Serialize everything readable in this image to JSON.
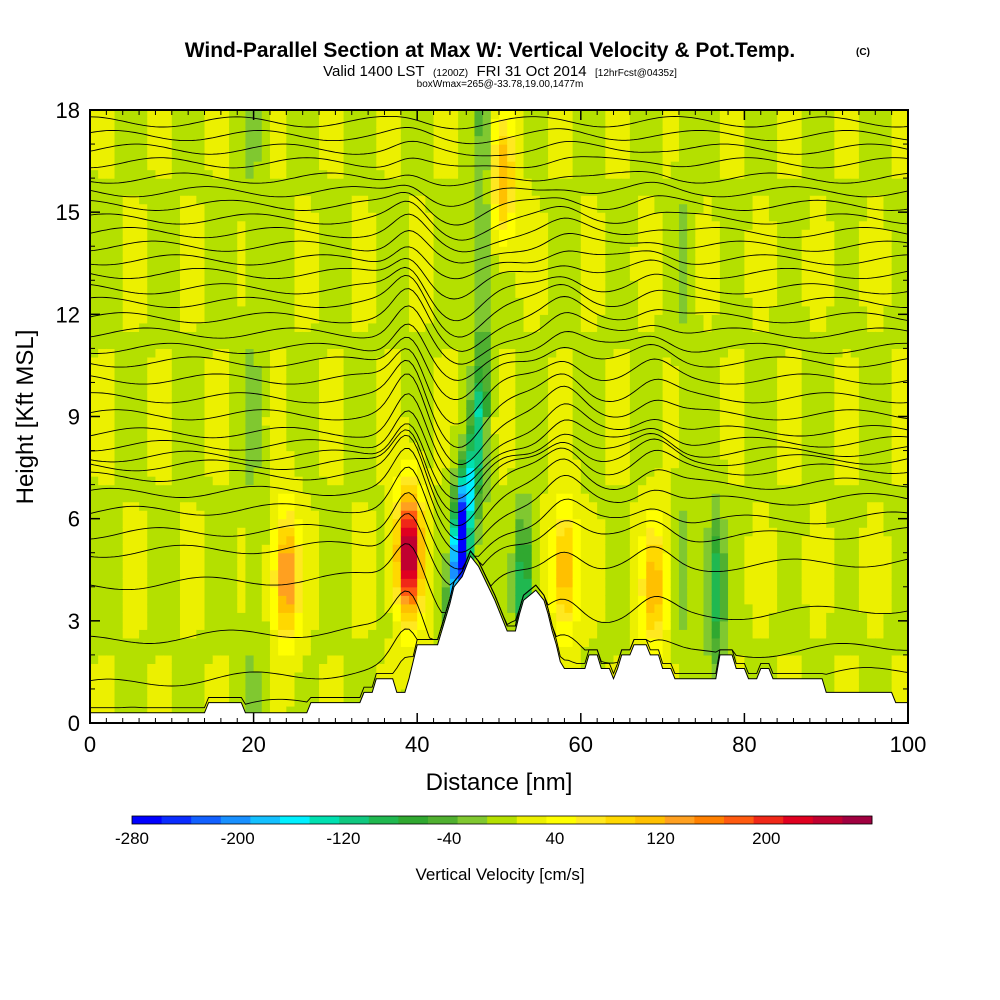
{
  "title": "Wind-Parallel Section at Max W: Vertical Velocity & Pot.Temp.",
  "copyright": "(C)",
  "subtitle": {
    "prefix": "Valid 1400 LST",
    "utc": "(1200Z)",
    "date": "FRI 31 Oct 2014",
    "forecast": "[12hrFcst@0435z]"
  },
  "boxinfo": "boxWmax=265@-33.78,19.00,1477m",
  "chart_data": {
    "type": "heatmap",
    "title": "Wind-Parallel Section at Max W: Vertical Velocity & Pot.Temp.",
    "xlabel": "Distance [nm]",
    "ylabel": "Height [Kft MSL]",
    "xlim": [
      0,
      100
    ],
    "ylim": [
      0,
      18
    ],
    "xticks": [
      "0",
      "20",
      "40",
      "60",
      "80",
      "100"
    ],
    "yticks": [
      "0",
      "3",
      "6",
      "9",
      "12",
      "15",
      "18"
    ],
    "colorbar": {
      "label": "Vertical Velocity [cm/s]",
      "range": [
        -280,
        280
      ],
      "tick_labels": [
        "-280",
        "-200",
        "-120",
        "-40",
        "40",
        "120",
        "200"
      ],
      "colors": [
        "#0000ff",
        "#0a2cff",
        "#1260ff",
        "#1890ff",
        "#14c0ff",
        "#00f0ff",
        "#00e0b0",
        "#10c880",
        "#20b850",
        "#30a830",
        "#50b030",
        "#80c830",
        "#b4e000",
        "#ecf000",
        "#ffff00",
        "#ffe820",
        "#ffd800",
        "#ffc000",
        "#ffa020",
        "#ff8000",
        "#ff5a10",
        "#f02818",
        "#e00020",
        "#c00030",
        "#a00040"
      ]
    },
    "velocity_features": [
      {
        "type": "updraft",
        "x_nm": 24,
        "z_kft": 4.3,
        "w_cms": 150
      },
      {
        "type": "updraft",
        "x_nm": 39,
        "z_kft": 5.0,
        "w_cms": 265
      },
      {
        "type": "downdraft",
        "x_nm": 45.5,
        "z_kft": 5.0,
        "w_cms": -220
      },
      {
        "type": "downdraft",
        "x_nm": 47.5,
        "z_kft": 8.0,
        "w_cms": -80
      },
      {
        "type": "updraft",
        "x_nm": 50.5,
        "z_kft": 16.0,
        "w_cms": 110
      },
      {
        "type": "downdraft",
        "x_nm": 53,
        "z_kft": 4.0,
        "w_cms": -120
      },
      {
        "type": "updraft",
        "x_nm": 58,
        "z_kft": 4.5,
        "w_cms": 120
      },
      {
        "type": "updraft",
        "x_nm": 69,
        "z_kft": 4.0,
        "w_cms": 110
      },
      {
        "type": "downdraft",
        "x_nm": 76.5,
        "z_kft": 4.0,
        "w_cms": -110
      }
    ],
    "terrain_kft": [
      {
        "x": 0,
        "z": 0.3
      },
      {
        "x": 14,
        "z": 0.3
      },
      {
        "x": 14.5,
        "z": 0.6
      },
      {
        "x": 18.5,
        "z": 0.6
      },
      {
        "x": 19,
        "z": 0.3
      },
      {
        "x": 26.5,
        "z": 0.3
      },
      {
        "x": 27,
        "z": 0.6
      },
      {
        "x": 33,
        "z": 0.6
      },
      {
        "x": 33.5,
        "z": 0.9
      },
      {
        "x": 34.5,
        "z": 0.9
      },
      {
        "x": 35,
        "z": 1.3
      },
      {
        "x": 37,
        "z": 1.3
      },
      {
        "x": 37.5,
        "z": 0.9
      },
      {
        "x": 38.5,
        "z": 0.9
      },
      {
        "x": 39,
        "z": 1.3
      },
      {
        "x": 39.5,
        "z": 1.8
      },
      {
        "x": 40,
        "z": 2.3
      },
      {
        "x": 42.5,
        "z": 2.3
      },
      {
        "x": 43,
        "z": 2.7
      },
      {
        "x": 43.5,
        "z": 3.1
      },
      {
        "x": 44,
        "z": 3.5
      },
      {
        "x": 44.5,
        "z": 4.0
      },
      {
        "x": 45.5,
        "z": 4.3
      },
      {
        "x": 46.5,
        "z": 4.9
      },
      {
        "x": 47.5,
        "z": 4.6
      },
      {
        "x": 48.5,
        "z": 4.1
      },
      {
        "x": 49.5,
        "z": 3.6
      },
      {
        "x": 50.5,
        "z": 3.0
      },
      {
        "x": 51,
        "z": 2.7
      },
      {
        "x": 52,
        "z": 2.7
      },
      {
        "x": 52.5,
        "z": 3.2
      },
      {
        "x": 53,
        "z": 3.6
      },
      {
        "x": 54.5,
        "z": 3.9
      },
      {
        "x": 55.5,
        "z": 3.6
      },
      {
        "x": 56,
        "z": 3.2
      },
      {
        "x": 56.5,
        "z": 2.7
      },
      {
        "x": 57,
        "z": 2.3
      },
      {
        "x": 57.5,
        "z": 1.8
      },
      {
        "x": 58,
        "z": 1.6
      },
      {
        "x": 60.5,
        "z": 1.6
      },
      {
        "x": 61,
        "z": 2.0
      },
      {
        "x": 62,
        "z": 2.0
      },
      {
        "x": 62.5,
        "z": 1.6
      },
      {
        "x": 63.5,
        "z": 1.6
      },
      {
        "x": 64,
        "z": 1.3
      },
      {
        "x": 64.5,
        "z": 1.6
      },
      {
        "x": 65,
        "z": 2.0
      },
      {
        "x": 66,
        "z": 2.0
      },
      {
        "x": 66.5,
        "z": 2.3
      },
      {
        "x": 68,
        "z": 2.3
      },
      {
        "x": 68.5,
        "z": 2.0
      },
      {
        "x": 69.5,
        "z": 2.0
      },
      {
        "x": 70,
        "z": 1.6
      },
      {
        "x": 71,
        "z": 1.6
      },
      {
        "x": 71.5,
        "z": 1.3
      },
      {
        "x": 76.5,
        "z": 1.3
      },
      {
        "x": 77,
        "z": 2.0
      },
      {
        "x": 78.5,
        "z": 2.0
      },
      {
        "x": 79,
        "z": 1.6
      },
      {
        "x": 80,
        "z": 1.6
      },
      {
        "x": 80.5,
        "z": 1.3
      },
      {
        "x": 81.5,
        "z": 1.3
      },
      {
        "x": 82,
        "z": 1.6
      },
      {
        "x": 83,
        "z": 1.6
      },
      {
        "x": 83.5,
        "z": 1.3
      },
      {
        "x": 89.5,
        "z": 1.3
      },
      {
        "x": 90,
        "z": 0.9
      },
      {
        "x": 98,
        "z": 0.9
      },
      {
        "x": 98.5,
        "z": 0.6
      },
      {
        "x": 100,
        "z": 0.6
      }
    ],
    "theta_contours": {
      "base_kft": [
        0.9,
        1.7,
        2.9,
        4.4,
        5.3,
        5.8,
        6.4,
        6.9,
        7.35,
        7.65,
        7.9,
        8.2,
        8.55,
        9.05,
        9.55,
        10.1,
        10.6,
        11.0,
        11.45,
        11.9,
        12.35,
        12.75,
        13.2,
        13.6,
        14.0,
        14.4,
        14.8,
        15.2,
        15.6,
        16.0,
        16.45,
        16.85,
        17.25,
        17.65
      ]
    }
  }
}
